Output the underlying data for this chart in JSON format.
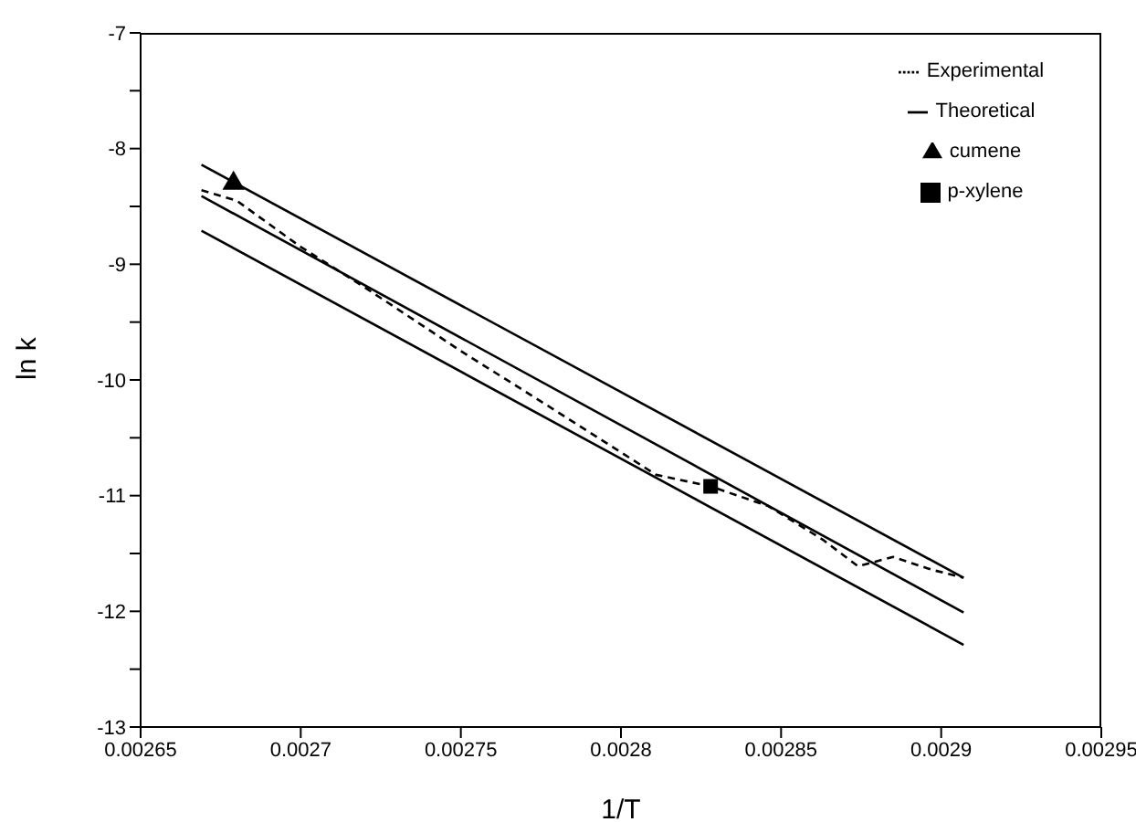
{
  "chart_data": {
    "type": "line",
    "xlabel": "1/T",
    "ylabel": "ln k",
    "xlim": [
      0.00265,
      0.00295
    ],
    "xticks": [
      0.00265,
      0.0027,
      0.00275,
      0.0028,
      0.00285,
      0.0029,
      0.00295
    ],
    "ylim": [
      -13,
      -7
    ],
    "yticks": [
      -13,
      {
        "value": -12.5,
        "label": null
      },
      -12,
      {
        "value": -11.5,
        "label": null
      },
      -11,
      {
        "value": -10.5,
        "label": null
      },
      -10,
      {
        "value": -9.5,
        "label": null
      },
      -9,
      {
        "value": -8.5,
        "label": null
      },
      -8,
      {
        "value": -7.5,
        "label": null
      },
      -7
    ],
    "grid": false,
    "legend": "top right",
    "series": [
      {
        "name": "Experimental",
        "color": "#000000",
        "line_style": "dashed",
        "marker": "none",
        "x": [
          0.002669,
          0.00268,
          0.0027,
          0.00272,
          0.00275,
          0.002777,
          0.002811,
          0.002828,
          0.002846,
          0.002863,
          0.002874,
          0.002885,
          0.002897,
          0.002907
        ],
        "values": [
          -8.36,
          -8.45,
          -8.85,
          -9.2,
          -9.75,
          -10.22,
          -10.82,
          -10.92,
          -11.09,
          -11.38,
          -11.61,
          -11.53,
          -11.64,
          -11.71
        ]
      },
      {
        "name": "Theoretical",
        "color": "#000000",
        "line_style": "solid",
        "marker": "none",
        "x": [
          0.002669,
          0.002907
        ],
        "values": [
          -8.14,
          -11.71
        ]
      },
      {
        "color": "#000000",
        "line_style": "solid",
        "marker": "none",
        "x": [
          0.002669,
          0.002907
        ],
        "values": [
          -8.41,
          -12.01
        ]
      },
      {
        "color": "#000000",
        "line_style": "solid",
        "marker": "none",
        "x": [
          0.002669,
          0.002907
        ],
        "values": [
          -8.71,
          -12.29
        ]
      },
      {
        "name": "p-xylene",
        "type": "scatter",
        "color": "#000000",
        "marker": "square",
        "x": [
          0.002828
        ],
        "values": [
          -10.92
        ]
      },
      {
        "name": "cumene",
        "type": "scatter",
        "color": "#000000",
        "marker": "triangle",
        "x": [
          0.002679
        ],
        "values": [
          -8.3
        ]
      }
    ]
  }
}
